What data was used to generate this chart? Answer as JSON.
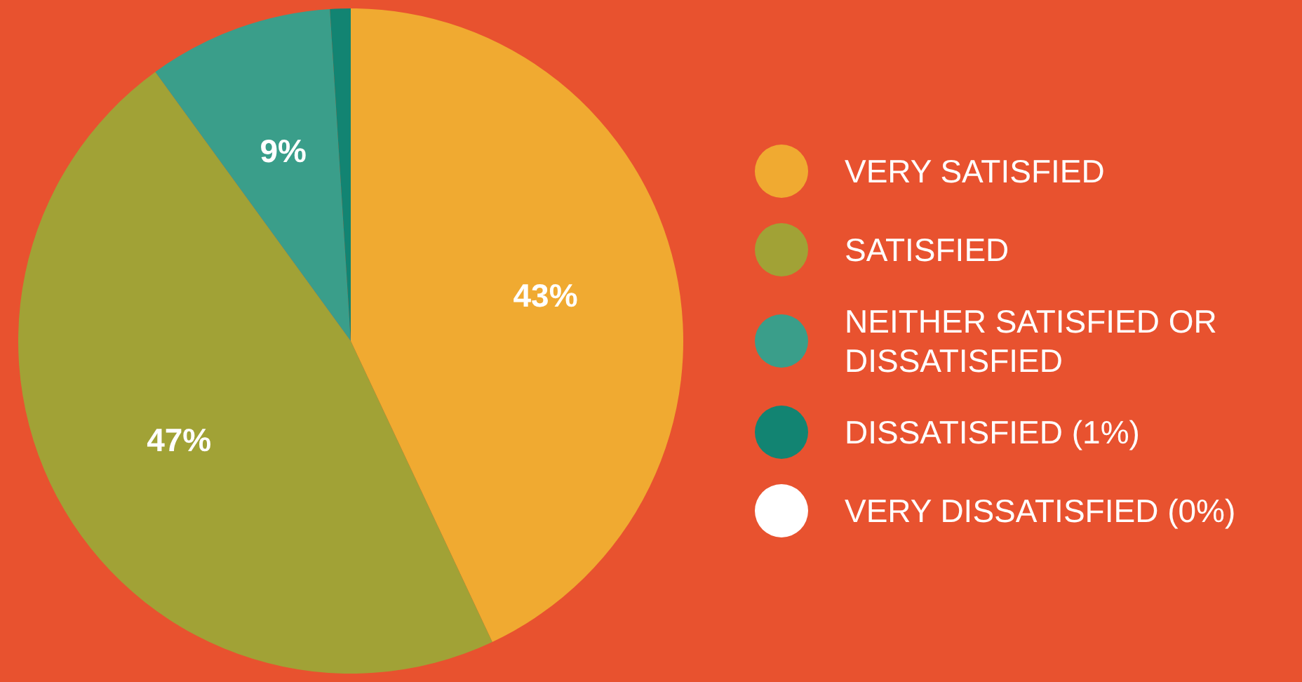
{
  "chart_data": {
    "type": "pie",
    "categories": [
      "VERY SATISFIED",
      "SATISFIED",
      "NEITHER SATISFIED OR DISSATISFIED",
      "DISSATISFIED (1%)",
      "VERY DISSATISFIED (0%)"
    ],
    "values": [
      43,
      47,
      9,
      1,
      0
    ],
    "colors": [
      "#f0aa31",
      "#a1a236",
      "#3a9e8a",
      "#128472",
      "#ffffff"
    ],
    "value_labels": [
      "43%",
      "47%",
      "9%",
      null,
      null
    ],
    "legend": "right"
  }
}
